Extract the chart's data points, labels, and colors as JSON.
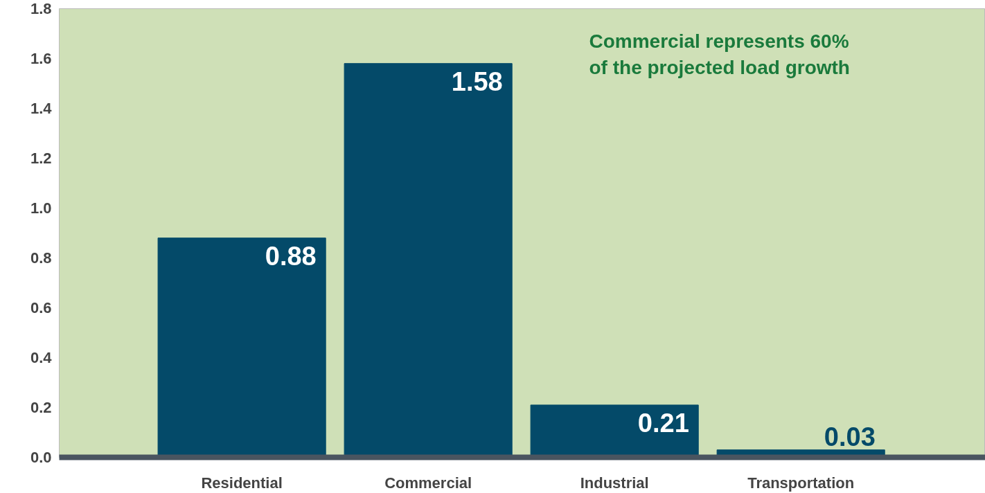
{
  "chart_data": {
    "type": "bar",
    "categories": [
      "Residential",
      "Commercial",
      "Industrial",
      "Transportation"
    ],
    "values": [
      0.88,
      1.58,
      0.21,
      0.03
    ],
    "color": "#044a69",
    "ylim": [
      0,
      1.8
    ],
    "yticks": [
      {
        "value": 0,
        "label": "0.0"
      },
      0.2,
      0.4,
      0.6,
      0.8,
      {
        "value": 1,
        "label": "1.0"
      },
      1.2,
      1.4,
      1.6,
      1.8
    ],
    "data_labels": true,
    "grid": false,
    "annotations": [
      "Commercial represents 60%\nof the projected load growth"
    ]
  }
}
